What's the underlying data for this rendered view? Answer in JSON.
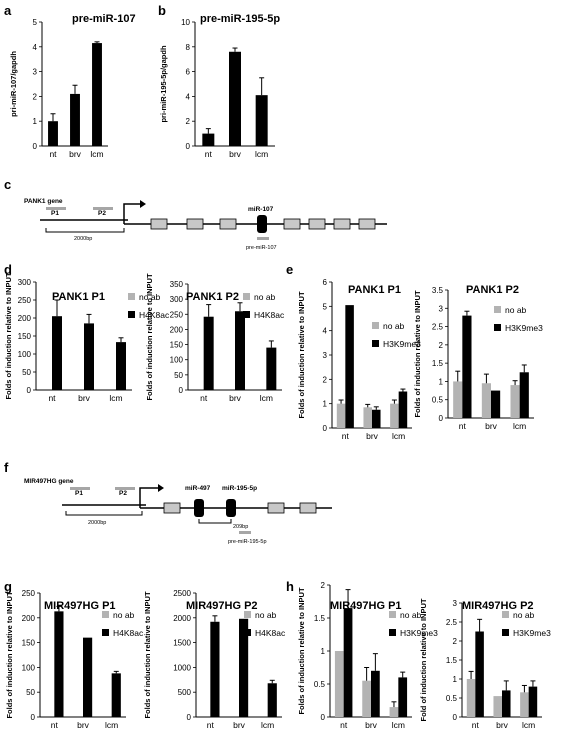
{
  "panels": {
    "a": "a",
    "b": "b",
    "c": "c",
    "d": "d",
    "e": "e",
    "f": "f",
    "g": "g",
    "h": "h"
  },
  "legend": {
    "no_ab": "no ab",
    "h4k8ac": "H4K8ac",
    "h3k9me3": "H3K9me3"
  },
  "colors": {
    "no_ab": "#b3b3b3",
    "treated": "#000000",
    "exon": "#c8c8c8",
    "probe": "#a6a6a6"
  },
  "diagram_c": {
    "gene_label": "PANK1 gene",
    "p1": "P1",
    "p2": "P2",
    "scale": "2000bp",
    "mirna": "miR-107",
    "pre_mirna": "pre-miR-107"
  },
  "diagram_f": {
    "gene_label": "MIR497HG gene",
    "p1": "P1",
    "p2": "P2",
    "scale": "2000bp",
    "mirna1": "miR-497",
    "mirna2": "miR-195-5p",
    "gap": "209bp",
    "pre_mirna": "pre-miR-195-5p"
  },
  "chart_data": [
    {
      "panel": "a",
      "type": "bar",
      "title": "pre-miR-107",
      "ylabel": "pri-miR-107/gapdh",
      "ylim": [
        0,
        5
      ],
      "yticks": [
        0,
        1,
        2,
        3,
        4,
        5
      ],
      "categories": [
        "nt",
        "brv",
        "lcm"
      ],
      "series": [
        {
          "key": "treated",
          "values": [
            1.0,
            2.1,
            4.15
          ],
          "errors": [
            0.3,
            0.35,
            0.05
          ]
        }
      ]
    },
    {
      "panel": "b",
      "type": "bar",
      "title": "pre-miR-195-5p",
      "ylabel": "pri-miR-195-5p/gapdh",
      "ylim": [
        0,
        10
      ],
      "yticks": [
        0,
        2,
        4,
        6,
        8,
        10
      ],
      "categories": [
        "nt",
        "brv",
        "lcm"
      ],
      "series": [
        {
          "key": "treated",
          "values": [
            1.0,
            7.6,
            4.1
          ],
          "errors": [
            0.4,
            0.3,
            1.4
          ]
        }
      ]
    },
    {
      "panel": "d1",
      "type": "bar",
      "title": "PANK1 P1",
      "ylabel": "Folds of induction relative to INPUT",
      "ylim": [
        0,
        300
      ],
      "yticks": [
        0,
        50,
        100,
        150,
        200,
        250,
        300
      ],
      "categories": [
        "nt",
        "brv",
        "lcm"
      ],
      "legend": [
        "no_ab",
        "h4k8ac"
      ],
      "series": [
        {
          "key": "no_ab",
          "values": [
            0,
            0,
            0
          ],
          "errors": [
            0,
            0,
            0
          ]
        },
        {
          "key": "h4k8ac",
          "values": [
            205,
            185,
            133
          ],
          "errors": [
            45,
            25,
            12
          ]
        }
      ]
    },
    {
      "panel": "d2",
      "type": "bar",
      "title": "PANK1 P2",
      "ylabel": "Folds of induction relative to INPUT",
      "ylim": [
        0,
        350
      ],
      "yticks": [
        0,
        50,
        100,
        150,
        200,
        250,
        300,
        350
      ],
      "categories": [
        "nt",
        "brv",
        "lcm"
      ],
      "legend": [
        "no_ab",
        "h4k8ac"
      ],
      "series": [
        {
          "key": "no_ab",
          "values": [
            0,
            0,
            0
          ],
          "errors": [
            0,
            0,
            0
          ]
        },
        {
          "key": "h4k8ac",
          "values": [
            242,
            260,
            140
          ],
          "errors": [
            40,
            28,
            22
          ]
        }
      ]
    },
    {
      "panel": "e1",
      "type": "bar",
      "title": "PANK1 P1",
      "ylabel": "Folds of induction relative to INPUT",
      "ylim": [
        0,
        6
      ],
      "yticks": [
        0,
        1,
        2,
        3,
        4,
        5,
        6
      ],
      "categories": [
        "nt",
        "brv",
        "lcm"
      ],
      "legend": [
        "no_ab",
        "h3k9me3"
      ],
      "series": [
        {
          "key": "no_ab",
          "values": [
            1.0,
            0.85,
            1.0
          ],
          "errors": [
            0.15,
            0.12,
            0.15
          ]
        },
        {
          "key": "h3k9me3",
          "values": [
            5.05,
            0.75,
            1.5
          ],
          "errors": [
            0.0,
            0.12,
            0.1
          ]
        }
      ]
    },
    {
      "panel": "e2",
      "type": "bar",
      "title": "PANK1 P2",
      "ylabel": "Folds of induction relative to INPUT",
      "ylim": [
        0,
        3.5
      ],
      "yticks": [
        0,
        0.5,
        1,
        1.5,
        2,
        2.5,
        3,
        3.5
      ],
      "categories": [
        "nt",
        "brv",
        "lcm"
      ],
      "legend": [
        "no_ab",
        "h3k9me3"
      ],
      "series": [
        {
          "key": "no_ab",
          "values": [
            1.0,
            0.95,
            0.9
          ],
          "errors": [
            0.28,
            0.25,
            0.12
          ]
        },
        {
          "key": "h3k9me3",
          "values": [
            2.8,
            0.75,
            1.25
          ],
          "errors": [
            0.12,
            0.0,
            0.2
          ]
        }
      ]
    },
    {
      "panel": "g1",
      "type": "bar",
      "title": "MIR497HG P1",
      "ylabel": "Folds of induction relative to INPUT",
      "ylim": [
        0,
        250
      ],
      "yticks": [
        0,
        50,
        100,
        150,
        200,
        250
      ],
      "categories": [
        "nt",
        "brv",
        "lcm"
      ],
      "legend": [
        "no_ab",
        "h4k8ac"
      ],
      "series": [
        {
          "key": "no_ab",
          "values": [
            0,
            0,
            0
          ],
          "errors": [
            0,
            0,
            0
          ]
        },
        {
          "key": "h4k8ac",
          "values": [
            213,
            160,
            88
          ],
          "errors": [
            10,
            0,
            4
          ]
        }
      ]
    },
    {
      "panel": "g2",
      "type": "bar",
      "title": "MIR497HG P2",
      "ylabel": "Folds of induction relative to INPUT",
      "ylim": [
        0,
        2500
      ],
      "yticks": [
        0,
        500,
        1000,
        1500,
        2000,
        2500
      ],
      "categories": [
        "nt",
        "brv",
        "lcm"
      ],
      "legend": [
        "no_ab",
        "h4k8ac"
      ],
      "series": [
        {
          "key": "no_ab",
          "values": [
            0,
            0,
            0
          ],
          "errors": [
            0,
            0,
            0
          ]
        },
        {
          "key": "h4k8ac",
          "values": [
            1920,
            1980,
            680
          ],
          "errors": [
            120,
            0,
            60
          ]
        }
      ]
    },
    {
      "panel": "h1",
      "type": "bar",
      "title": "MIR497HG P1",
      "ylabel": "Folds of induction relative to INPUT",
      "ylim": [
        0,
        2
      ],
      "yticks": [
        0,
        0.5,
        1,
        1.5,
        2
      ],
      "categories": [
        "nt",
        "brv",
        "lcm"
      ],
      "legend": [
        "no_ab",
        "h3k9me3"
      ],
      "series": [
        {
          "key": "no_ab",
          "values": [
            1.0,
            0.55,
            0.15
          ],
          "errors": [
            0.0,
            0.2,
            0.08
          ]
        },
        {
          "key": "h3k9me3",
          "values": [
            1.65,
            0.7,
            0.6
          ],
          "errors": [
            0.28,
            0.26,
            0.08
          ]
        }
      ]
    },
    {
      "panel": "h2",
      "type": "bar",
      "title": "MIR497HG P2",
      "ylabel": "Fold of induction relative to INPUT",
      "ylim": [
        0,
        3
      ],
      "yticks": [
        0,
        0.5,
        1,
        1.5,
        2,
        2.5,
        3
      ],
      "categories": [
        "nt",
        "brv",
        "lcm"
      ],
      "legend": [
        "no_ab",
        "h3k9me3"
      ],
      "series": [
        {
          "key": "no_ab",
          "values": [
            1.0,
            0.55,
            0.65
          ],
          "errors": [
            0.2,
            0.0,
            0.18
          ]
        },
        {
          "key": "h3k9me3",
          "values": [
            2.25,
            0.7,
            0.8
          ],
          "errors": [
            0.32,
            0.25,
            0.15
          ]
        }
      ]
    }
  ]
}
